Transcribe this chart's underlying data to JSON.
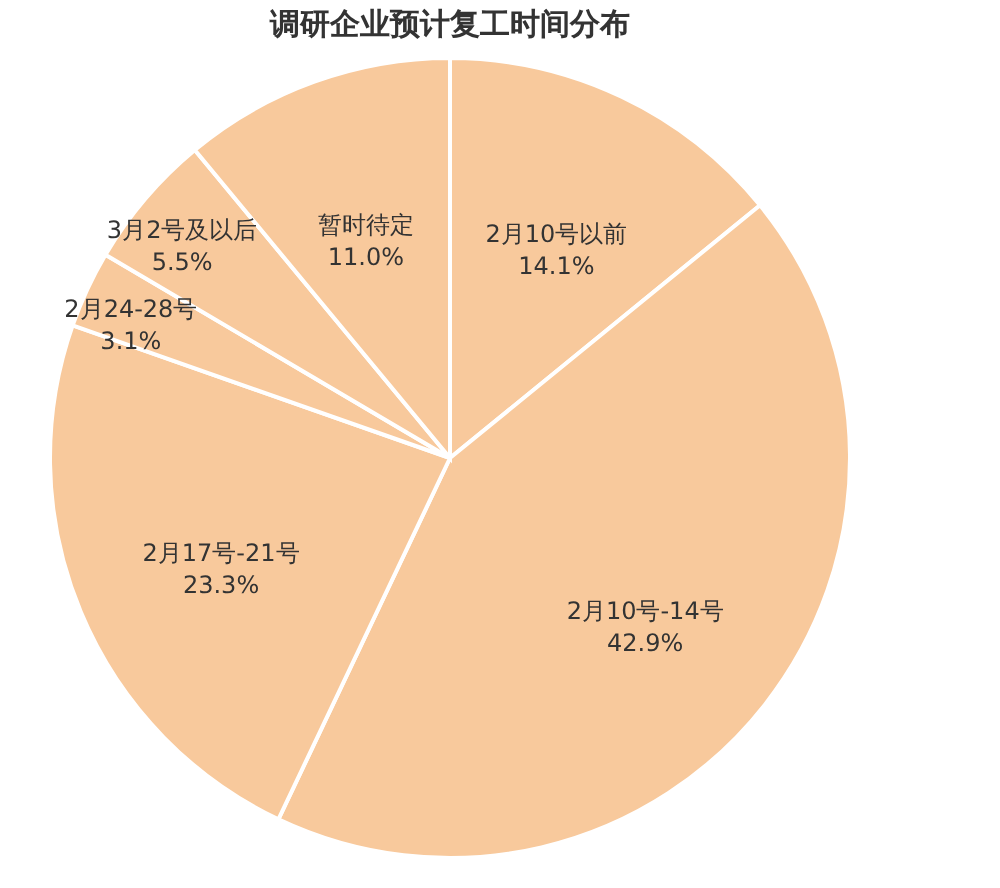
{
  "chart_data": {
    "type": "pie",
    "title": "调研企业预计复工时间分布",
    "categories": [
      "2月10号以前",
      "2月10号-14号",
      "2月17号-21号",
      "2月24-28号",
      "3月2号及以后",
      "暂时待定"
    ],
    "values": [
      14.1,
      42.9,
      23.3,
      3.1,
      5.5,
      11.0
    ],
    "value_labels": [
      "14.1%",
      "42.9%",
      "23.3%",
      "3.1%",
      "5.5%",
      "11.0%"
    ],
    "colors": [
      "#f8c99c",
      "#f8c99c",
      "#f8c99c",
      "#f8c99c",
      "#f8c99c",
      "#f8c99c"
    ],
    "legend": false
  }
}
